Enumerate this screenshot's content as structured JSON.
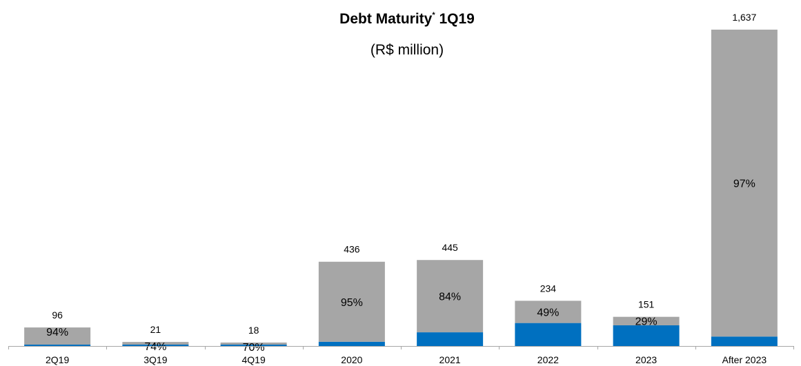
{
  "chart_data": {
    "type": "bar",
    "stacked": true,
    "title": "Debt Maturity",
    "title_superscript": "*",
    "title_suffix": "1Q19",
    "subtitle": "(R$ million)",
    "categories": [
      "2Q19",
      "3Q19",
      "4Q19",
      "2020",
      "2021",
      "2022",
      "2023",
      "After 2023"
    ],
    "totals": [
      96,
      21,
      18,
      436,
      445,
      234,
      151,
      1637
    ],
    "total_labels": [
      "96",
      "21",
      "18",
      "436",
      "445",
      "234",
      "151",
      "1,637"
    ],
    "percent_labels": [
      "94%",
      "74%",
      "70%",
      "95%",
      "84%",
      "49%",
      "29%",
      "97%"
    ],
    "series": [
      {
        "values": [
          6,
          5,
          5,
          22,
          71,
          119,
          107,
          49
        ]
      },
      {
        "values": [
          90,
          16,
          13,
          414,
          374,
          115,
          44,
          1588
        ]
      }
    ],
    "ylim": [
      0,
      1637
    ],
    "grid": false,
    "legend": "none",
    "colors": {
      "bottom_series": "#0070C0",
      "top_series": "#A6A6A6",
      "axis": "#A6A6A6"
    }
  }
}
